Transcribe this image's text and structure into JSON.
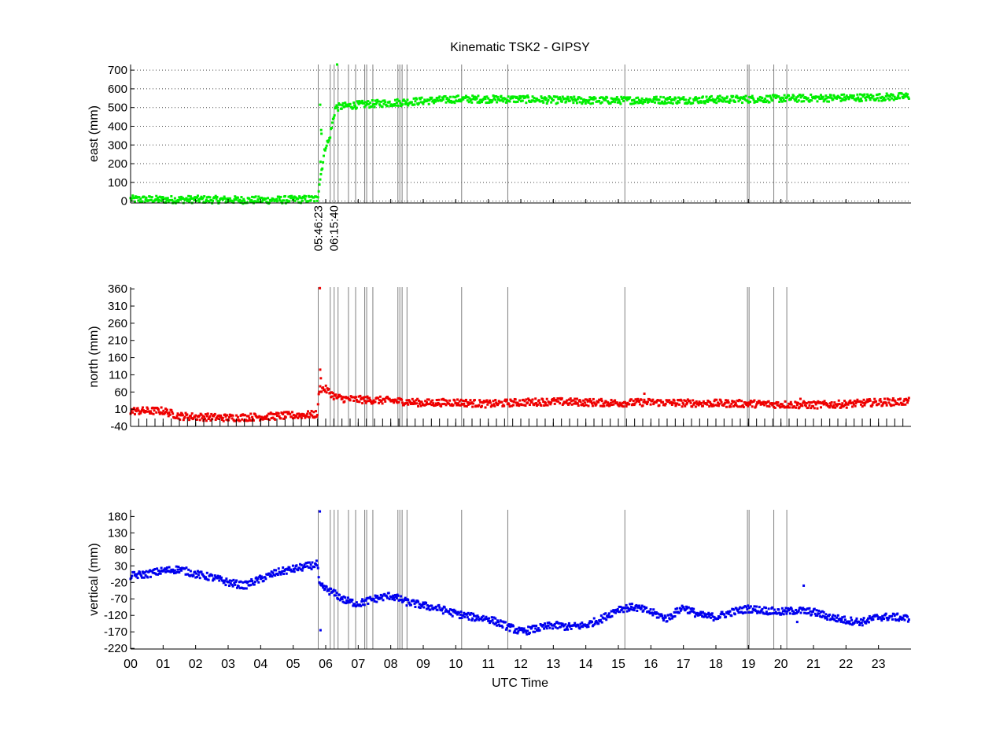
{
  "figure": {
    "title": "Kinematic TSK2 - GIPSY",
    "xlabel": "UTC Time",
    "x_tick_labels": [
      "00",
      "01",
      "02",
      "03",
      "04",
      "05",
      "06",
      "07",
      "08",
      "09",
      "10",
      "11",
      "12",
      "13",
      "14",
      "15",
      "16",
      "17",
      "18",
      "19",
      "20",
      "21",
      "22",
      "23"
    ],
    "event_labels": [
      "05:46:23",
      "06:15:40"
    ]
  },
  "event_lines_hours": [
    5.77,
    6.14,
    6.26,
    6.38,
    6.7,
    6.92,
    7.2,
    7.26,
    7.45,
    8.22,
    8.28,
    8.35,
    8.5,
    10.18,
    11.6,
    15.2,
    18.97,
    19.02,
    19.78,
    20.18
  ],
  "chart_data": [
    {
      "type": "scatter",
      "ylabel": "east (mm)",
      "color": "#00ee00",
      "xlim": [
        0,
        24
      ],
      "ylim": [
        -10,
        730
      ],
      "y_ticks": [
        0,
        100,
        200,
        300,
        400,
        500,
        600,
        700
      ],
      "grid": "horizontal dotted",
      "x": [
        0,
        1,
        2,
        3,
        4,
        5,
        5.75,
        5.8,
        6.0,
        6.1,
        6.3,
        6.5,
        7,
        8,
        9,
        10,
        11,
        12,
        13,
        14,
        15,
        16,
        17,
        18,
        19,
        20,
        21,
        22,
        23,
        23.95
      ],
      "y": [
        10,
        8,
        9,
        7,
        5,
        8,
        12,
        90,
        300,
        320,
        500,
        505,
        515,
        525,
        535,
        545,
        545,
        545,
        540,
        538,
        538,
        540,
        540,
        543,
        545,
        548,
        550,
        552,
        555,
        560
      ],
      "outliers": [
        [
          5.83,
          515
        ],
        [
          5.84,
          210
        ],
        [
          5.86,
          380
        ],
        [
          5.87,
          360
        ],
        [
          6.35,
          730
        ]
      ]
    },
    {
      "type": "scatter",
      "ylabel": "north (mm)",
      "color": "#ee0000",
      "xlim": [
        0,
        24
      ],
      "ylim": [
        -40,
        365
      ],
      "y_ticks": [
        -40,
        10,
        60,
        110,
        160,
        210,
        260,
        310,
        360
      ],
      "x": [
        0,
        1,
        1.5,
        2,
        3,
        4,
        5,
        5.75,
        5.8,
        6.0,
        6.3,
        6.6,
        7,
        8,
        9,
        10,
        11,
        12,
        13,
        14,
        15,
        16,
        17,
        18,
        19,
        20,
        21,
        22,
        23,
        23.95
      ],
      "y": [
        5,
        5,
        -10,
        -12,
        -15,
        -12,
        -8,
        -5,
        70,
        68,
        45,
        40,
        38,
        35,
        28,
        30,
        25,
        30,
        32,
        30,
        28,
        30,
        28,
        27,
        26,
        24,
        22,
        25,
        30,
        32
      ],
      "outliers": [
        [
          5.82,
          362
        ],
        [
          5.83,
          125
        ],
        [
          5.85,
          100
        ],
        [
          15.8,
          55
        ],
        [
          20.6,
          40
        ]
      ]
    },
    {
      "type": "scatter",
      "ylabel": "vertical (mm)",
      "color": "#0000ee",
      "xlim": [
        0,
        24
      ],
      "ylim": [
        -222,
        200
      ],
      "y_ticks": [
        -220,
        -170,
        -120,
        -70,
        -20,
        30,
        80,
        130,
        180
      ],
      "x": [
        0,
        0.5,
        1,
        1.5,
        2,
        2.5,
        3,
        3.5,
        4,
        4.5,
        5,
        5.5,
        5.75,
        5.8,
        6.2,
        6.6,
        7,
        7.5,
        8,
        8.5,
        9,
        9.5,
        10,
        10.5,
        11,
        11.5,
        12,
        12.5,
        13,
        13.5,
        14,
        14.5,
        15,
        15.5,
        16,
        16.5,
        17,
        17.5,
        18,
        18.5,
        19,
        19.5,
        20,
        20.5,
        21,
        21.5,
        22,
        22.5,
        23,
        23.5,
        23.95
      ],
      "y": [
        0,
        5,
        15,
        20,
        5,
        -5,
        -20,
        -30,
        -10,
        10,
        20,
        30,
        35,
        -30,
        -50,
        -75,
        -85,
        -70,
        -60,
        -80,
        -90,
        -100,
        -115,
        -125,
        -130,
        -150,
        -170,
        -160,
        -150,
        -155,
        -150,
        -130,
        -100,
        -95,
        -110,
        -130,
        -95,
        -120,
        -125,
        -110,
        -100,
        -105,
        -110,
        -105,
        -110,
        -125,
        -135,
        -140,
        -125,
        -125,
        -130
      ],
      "outliers": [
        [
          5.82,
          195
        ],
        [
          5.84,
          -165
        ],
        [
          20.7,
          -30
        ],
        [
          20.5,
          -140
        ]
      ]
    }
  ]
}
